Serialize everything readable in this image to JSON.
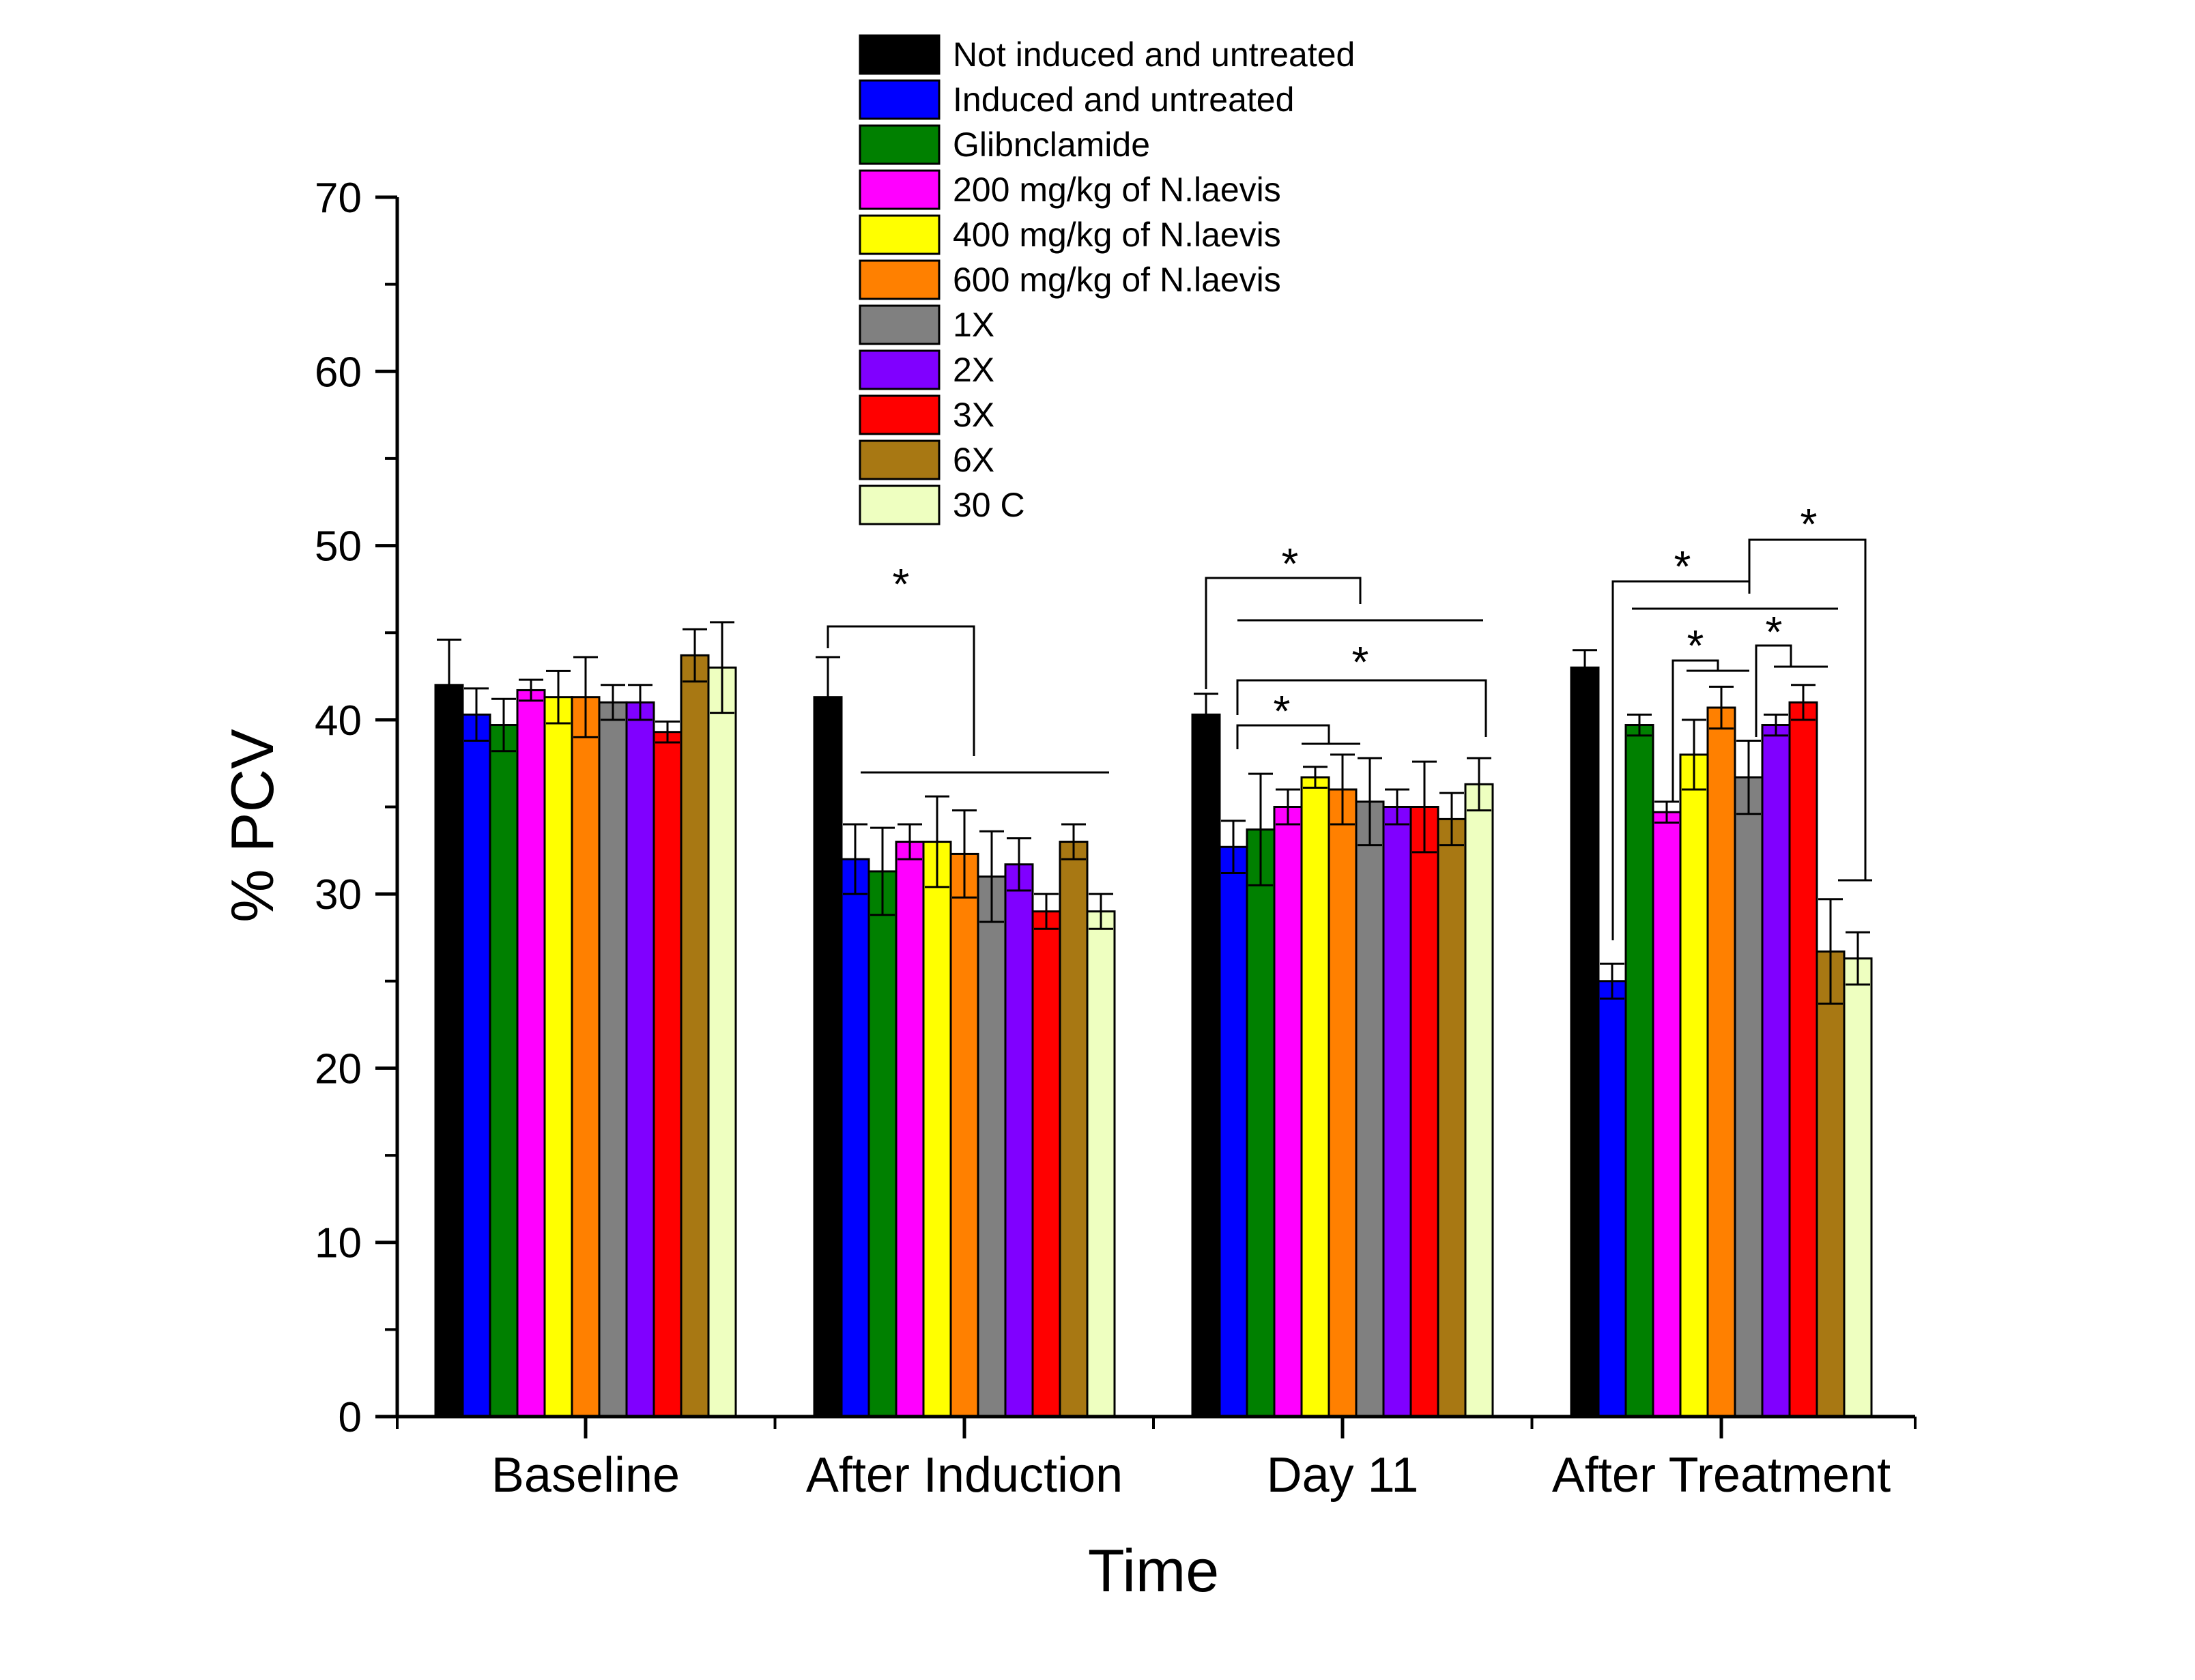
{
  "chart_data": {
    "type": "bar",
    "xlabel": "Time",
    "ylabel": "% PCV",
    "ylim": [
      0,
      70
    ],
    "yticks": [
      0,
      10,
      20,
      30,
      40,
      50,
      60,
      70
    ],
    "grid": false,
    "legend_position": "top-center",
    "categories": [
      "Baseline",
      "After Induction",
      "Day 11",
      "After Treatment"
    ],
    "significance_marker": "*",
    "series": [
      {
        "name": "Not induced and untreated",
        "color": "#000000",
        "values": [
          42.0,
          41.3,
          40.3,
          43.0
        ],
        "errors": [
          2.6,
          2.3,
          1.2,
          1.0
        ]
      },
      {
        "name": "Induced and untreated",
        "color": "#0000FF",
        "values": [
          40.3,
          32.0,
          32.7,
          25.0
        ],
        "errors": [
          1.5,
          2.0,
          1.5,
          1.0
        ]
      },
      {
        "name": "Glibnclamide",
        "color": "#008000",
        "values": [
          39.7,
          31.3,
          33.7,
          39.7
        ],
        "errors": [
          1.5,
          2.5,
          3.2,
          0.6
        ]
      },
      {
        "name": "200 mg/kg of N.laevis",
        "color": "#FF00FF",
        "values": [
          41.7,
          33.0,
          35.0,
          34.7
        ],
        "errors": [
          0.6,
          1.0,
          1.0,
          0.6
        ]
      },
      {
        "name": "400 mg/kg of N.laevis",
        "color": "#FFFF00",
        "values": [
          41.3,
          33.0,
          36.7,
          38.0
        ],
        "errors": [
          1.5,
          2.6,
          0.6,
          2.0
        ]
      },
      {
        "name": "600 mg/kg of N.laevis",
        "color": "#FF8000",
        "values": [
          41.3,
          32.3,
          36.0,
          40.7
        ],
        "errors": [
          2.3,
          2.5,
          2.0,
          1.2
        ]
      },
      {
        "name": "1X",
        "color": "#808080",
        "values": [
          41.0,
          31.0,
          35.3,
          36.7
        ],
        "errors": [
          1.0,
          2.6,
          2.5,
          2.1
        ]
      },
      {
        "name": "2X",
        "color": "#8000FF",
        "values": [
          41.0,
          31.7,
          35.0,
          39.7
        ],
        "errors": [
          1.0,
          1.5,
          1.0,
          0.6
        ]
      },
      {
        "name": "3X",
        "color": "#FF0000",
        "values": [
          39.3,
          29.0,
          35.0,
          41.0
        ],
        "errors": [
          0.6,
          1.0,
          2.6,
          1.0
        ]
      },
      {
        "name": "6X",
        "color": "#A87813",
        "values": [
          43.7,
          33.0,
          34.3,
          26.7
        ],
        "errors": [
          1.5,
          1.0,
          1.5,
          3.0
        ]
      },
      {
        "name": "30 C",
        "color": "#EEFFC0",
        "values": [
          43.0,
          29.0,
          36.3,
          26.3
        ],
        "errors": [
          2.6,
          1.0,
          1.5,
          1.5
        ]
      }
    ]
  }
}
